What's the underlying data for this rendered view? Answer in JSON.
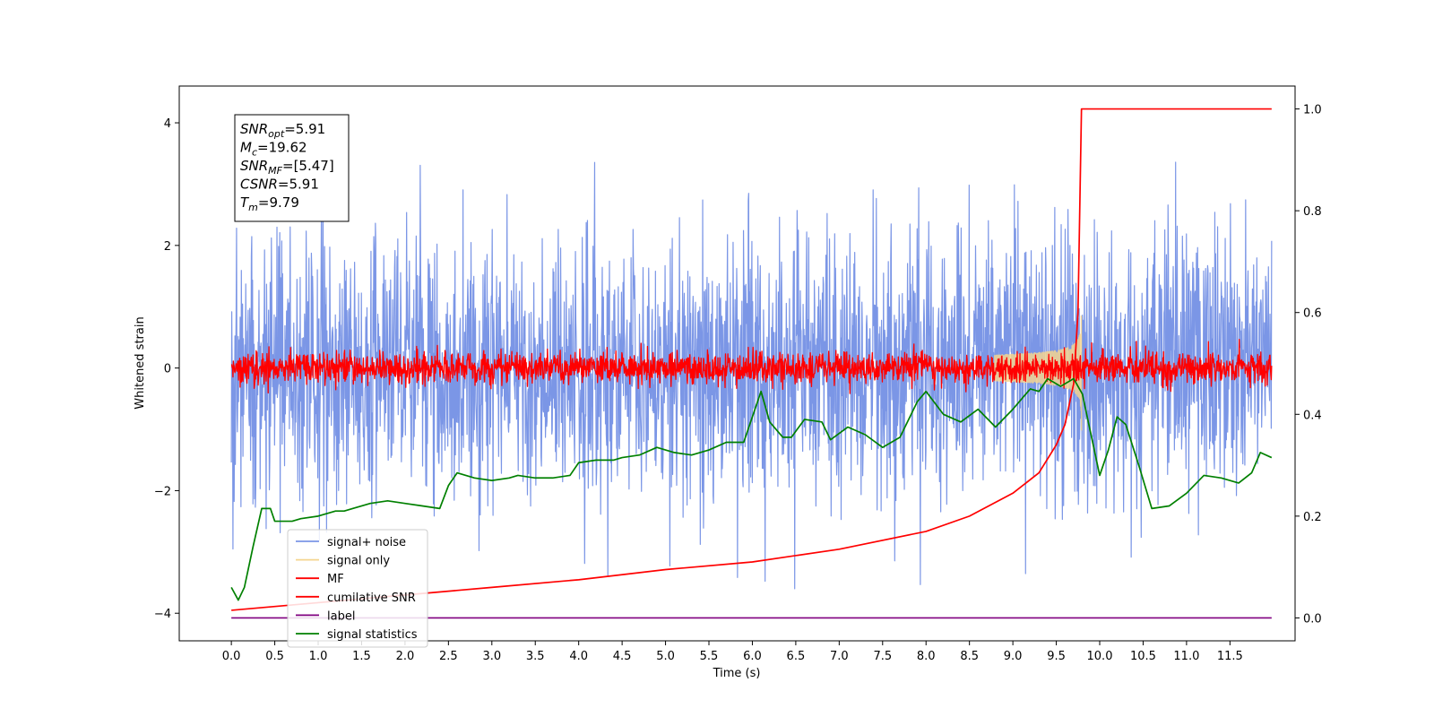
{
  "chart_data": {
    "type": "line",
    "xlabel": "Time (s)",
    "ylabel": "Whitened strain",
    "xlim": [
      -0.6,
      12.25
    ],
    "ylim": [
      -4.45,
      4.6
    ],
    "y2lim": [
      -0.045,
      1.045
    ],
    "xticks": [
      0.0,
      0.5,
      1.0,
      1.5,
      2.0,
      2.5,
      3.0,
      3.5,
      4.0,
      4.5,
      5.0,
      5.5,
      6.0,
      6.5,
      7.0,
      7.5,
      8.0,
      8.5,
      9.0,
      9.5,
      10.0,
      10.5,
      11.0,
      11.5
    ],
    "xtick_labels": [
      "0.0",
      "0.5",
      "1.0",
      "1.5",
      "2.0",
      "2.5",
      "3.0",
      "3.5",
      "4.0",
      "4.5",
      "5.0",
      "5.5",
      "6.0",
      "6.5",
      "7.0",
      "7.5",
      "8.0",
      "8.5",
      "9.0",
      "9.5",
      "10.0",
      "10.5",
      "11.0",
      "11.5"
    ],
    "yticks": [
      -4,
      -2,
      0,
      2,
      4
    ],
    "ytick_labels": [
      "−4",
      "−2",
      "0",
      "2",
      "4"
    ],
    "y2ticks": [
      0.0,
      0.2,
      0.4,
      0.6,
      0.8,
      1.0
    ],
    "y2tick_labels": [
      "0.0",
      "0.2",
      "0.4",
      "0.6",
      "0.8",
      "1.0"
    ],
    "grid": false,
    "legend_position": "bottom-left",
    "annotation": [
      {
        "symbol": "SNR",
        "sub": "opt",
        "value": "=5.91"
      },
      {
        "symbol": "M",
        "sub": "c",
        "value": "=19.62"
      },
      {
        "symbol": "SNR",
        "sub": "MF",
        "value": "=[5.47]"
      },
      {
        "symbol": "CSNR",
        "sub": "",
        "value": "=5.91"
      },
      {
        "symbol": "T",
        "sub": "m",
        "value": "=9.79"
      }
    ],
    "series": [
      {
        "name": "signal+ noise",
        "color": "#7b96e6",
        "axis": "left",
        "kind": "noise",
        "sigma": 1.0,
        "x_range": [
          0.0,
          11.98
        ]
      },
      {
        "name": "signal only",
        "color": "#f5d58f",
        "axis": "left",
        "kind": "chirp",
        "peak_time": 9.79,
        "peak_amplitude": 1.25
      },
      {
        "name": "MF",
        "color": "#ff0000",
        "axis": "left",
        "kind": "noise",
        "sigma": 0.13,
        "x_range": [
          0.0,
          11.98
        ]
      },
      {
        "name": "cumilative SNR",
        "color": "#ff0000",
        "axis": "right",
        "x": [
          0.0,
          1.0,
          2.0,
          3.0,
          4.0,
          5.0,
          6.0,
          7.0,
          8.0,
          8.5,
          9.0,
          9.3,
          9.5,
          9.6,
          9.7,
          9.75,
          9.79,
          10.0,
          11.0,
          11.98
        ],
        "values": [
          0.015,
          0.03,
          0.045,
          0.06,
          0.075,
          0.095,
          0.11,
          0.135,
          0.17,
          0.2,
          0.245,
          0.285,
          0.34,
          0.38,
          0.46,
          0.6,
          1.0,
          1.0,
          1.0,
          1.0
        ]
      },
      {
        "name": "label",
        "color": "#800080",
        "axis": "right",
        "x": [
          0.0,
          11.98
        ],
        "values": [
          0.0,
          0.0
        ]
      },
      {
        "name": "signal statistics",
        "color": "#008000",
        "axis": "right",
        "x": [
          0.0,
          0.08,
          0.15,
          0.25,
          0.35,
          0.45,
          0.5,
          0.6,
          0.7,
          0.8,
          1.0,
          1.2,
          1.3,
          1.4,
          1.6,
          1.8,
          2.0,
          2.2,
          2.4,
          2.5,
          2.6,
          2.8,
          3.0,
          3.2,
          3.3,
          3.5,
          3.7,
          3.9,
          4.0,
          4.2,
          4.4,
          4.5,
          4.7,
          4.9,
          5.1,
          5.3,
          5.5,
          5.7,
          5.9,
          6.0,
          6.1,
          6.2,
          6.35,
          6.45,
          6.6,
          6.8,
          6.9,
          7.1,
          7.3,
          7.5,
          7.7,
          7.9,
          8.0,
          8.2,
          8.4,
          8.6,
          8.8,
          9.0,
          9.2,
          9.3,
          9.4,
          9.55,
          9.7,
          9.8,
          10.0,
          10.1,
          10.2,
          10.3,
          10.45,
          10.6,
          10.8,
          11.0,
          11.2,
          11.4,
          11.6,
          11.75,
          11.85,
          11.98
        ],
        "values": [
          0.06,
          0.035,
          0.06,
          0.14,
          0.215,
          0.215,
          0.19,
          0.19,
          0.19,
          0.195,
          0.2,
          0.21,
          0.21,
          0.215,
          0.225,
          0.23,
          0.225,
          0.22,
          0.215,
          0.26,
          0.285,
          0.275,
          0.27,
          0.275,
          0.28,
          0.275,
          0.275,
          0.28,
          0.305,
          0.31,
          0.31,
          0.315,
          0.32,
          0.335,
          0.325,
          0.32,
          0.33,
          0.345,
          0.345,
          0.395,
          0.445,
          0.385,
          0.355,
          0.355,
          0.39,
          0.385,
          0.35,
          0.375,
          0.36,
          0.335,
          0.355,
          0.425,
          0.445,
          0.4,
          0.385,
          0.41,
          0.375,
          0.41,
          0.45,
          0.445,
          0.47,
          0.455,
          0.47,
          0.44,
          0.28,
          0.33,
          0.395,
          0.38,
          0.3,
          0.215,
          0.22,
          0.245,
          0.28,
          0.275,
          0.265,
          0.285,
          0.325,
          0.315
        ]
      }
    ]
  }
}
